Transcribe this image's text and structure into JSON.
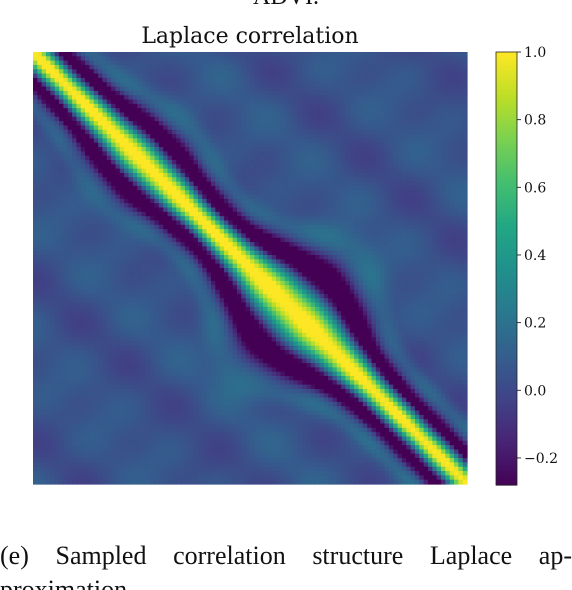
{
  "page": {
    "top_fragment": "ADVI.",
    "caption_line1": "(e)  Sampled  correlation  structure  Laplace  ap-",
    "caption_line2": "proximation."
  },
  "chart_data": {
    "type": "heatmap",
    "title": "Laplace correlation",
    "xlabel": "",
    "ylabel": "",
    "colormap": "viridis",
    "colorbar": {
      "range": [
        -0.28,
        1.0
      ],
      "ticks": [
        1.0,
        0.8,
        0.6,
        0.4,
        0.2,
        0.0,
        -0.2
      ],
      "tick_labels": [
        "1.0",
        "0.8",
        "0.6",
        "0.4",
        "0.2",
        "0.0",
        "−0.2"
      ]
    },
    "matrix_size": 100,
    "diagonal_value": 1.0,
    "off_diagonal_trough": -0.25,
    "background_level": 0.05,
    "axes_ticks_visible": false,
    "colors": {
      "low": "#440154",
      "mid": "#21918c",
      "high": "#fde725"
    }
  }
}
